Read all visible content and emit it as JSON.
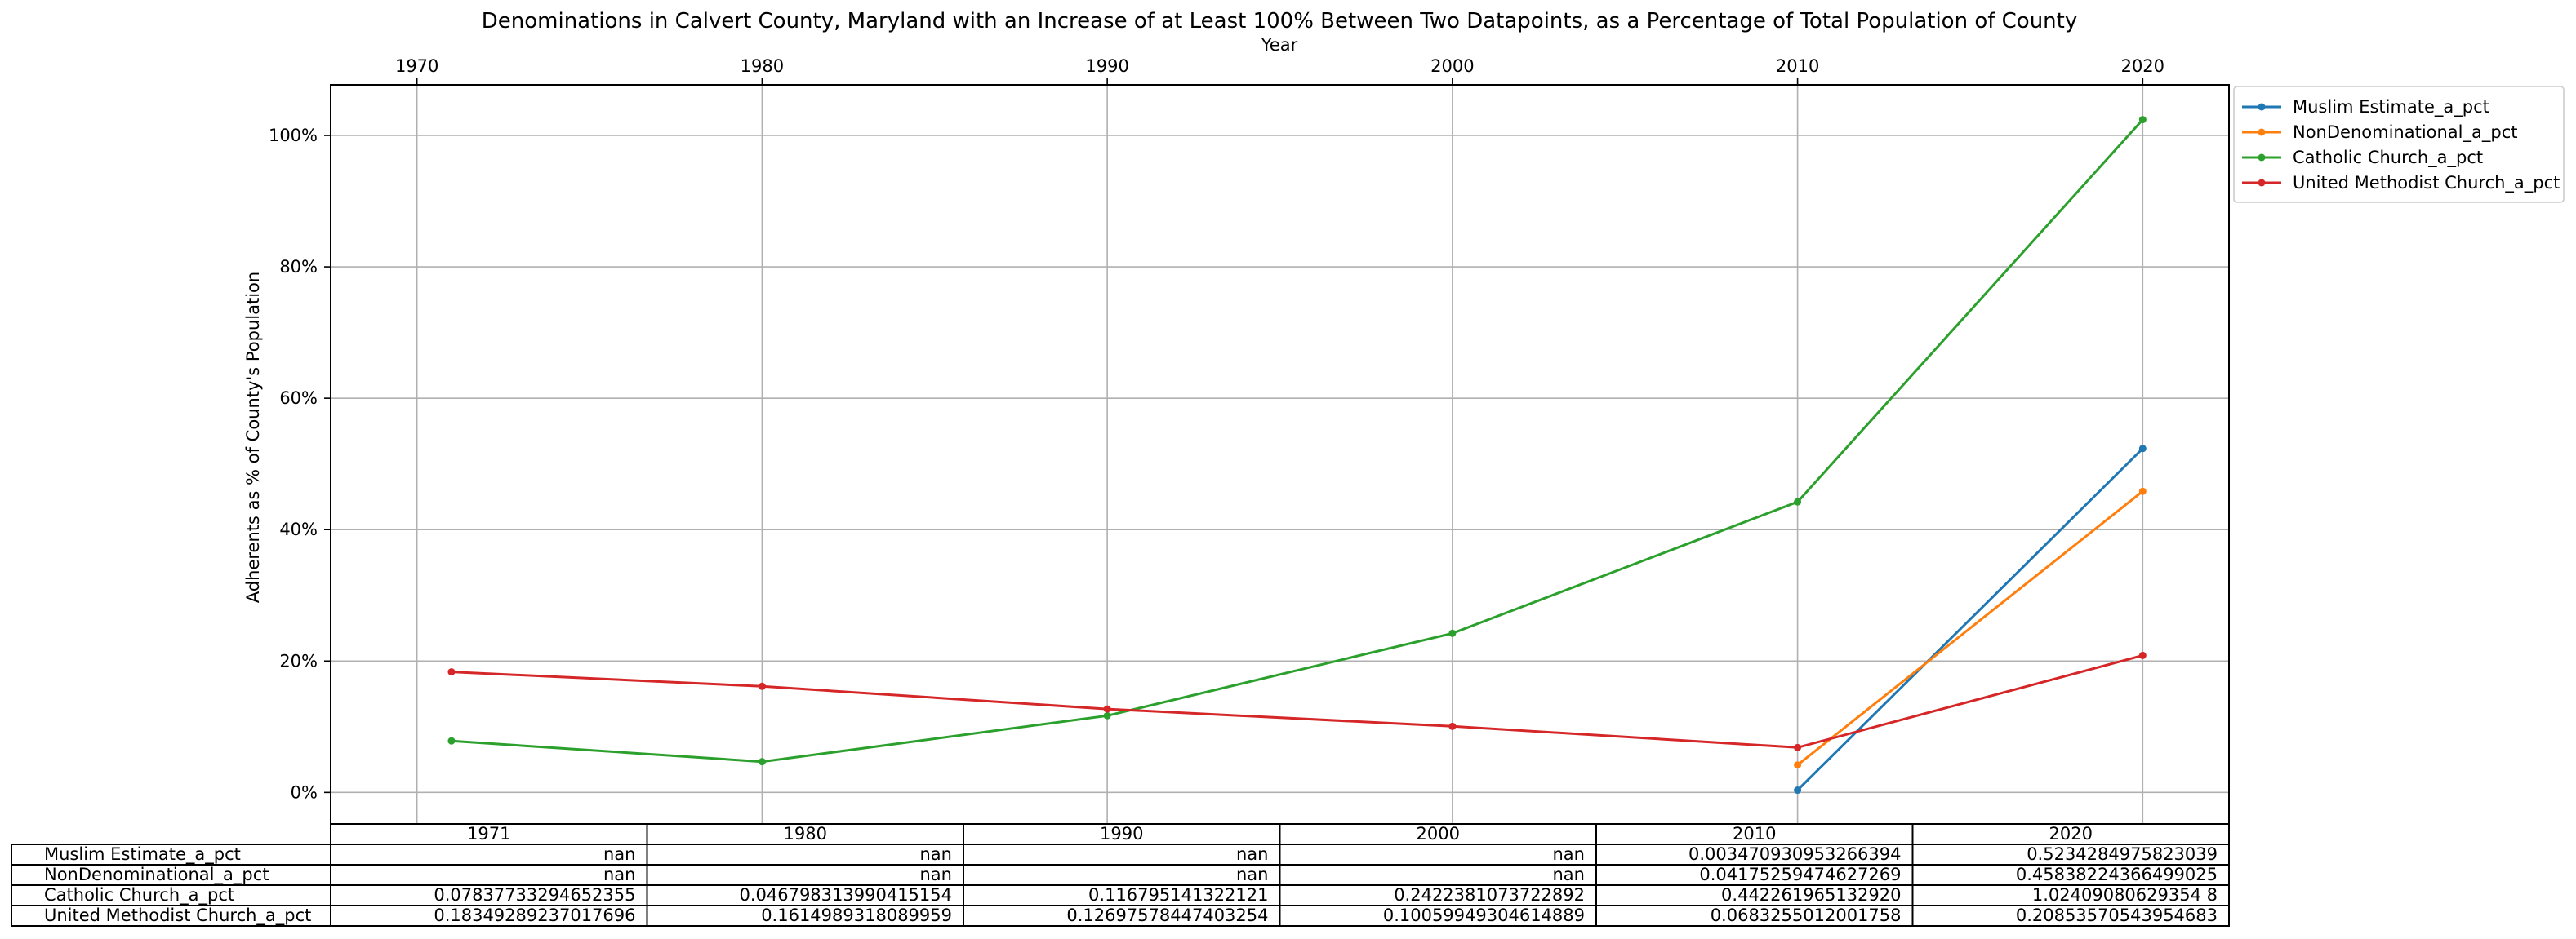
{
  "chart_data": {
    "type": "line",
    "title": "Denominations in Calvert County, Maryland with an Increase of at Least 100% Between Two Datapoints, as a Percentage of Total Population of County",
    "xlabel": "Year",
    "ylabel": "Adherents as % of County's Population",
    "x_ticks": [
      "1970",
      "1980",
      "1990",
      "2000",
      "2010",
      "2020"
    ],
    "y_ticks": [
      "0%",
      "20%",
      "40%",
      "60%",
      "80%",
      "100%"
    ],
    "xlim": [
      1967.5,
      2022.5
    ],
    "ylim": [
      -0.048,
      1.077
    ],
    "grid": true,
    "legend_position": "outside-top-right",
    "series": [
      {
        "name": "Muslim Estimate_a_pct",
        "color": "#1f77b4",
        "x": [
          2010,
          2020
        ],
        "y": [
          0.003470930953266394,
          0.5234284975823039
        ]
      },
      {
        "name": "NonDenominational_a_pct",
        "color": "#ff7f0e",
        "x": [
          2010,
          2020
        ],
        "y": [
          0.04175259474627269,
          0.45838224366499025
        ]
      },
      {
        "name": "Catholic Church_a_pct",
        "color": "#2ca02c",
        "x": [
          1971,
          1980,
          1990,
          2000,
          2010,
          2020
        ],
        "y": [
          0.07837733294652355,
          0.046798313990415154,
          0.116795141322121,
          0.2422381073722892,
          0.44226196513292,
          1.02409080629354
        ]
      },
      {
        "name": "United Methodist Church_a_pct",
        "color": "#d62728",
        "x": [
          1971,
          1980,
          1990,
          2000,
          2010,
          2020
        ],
        "y": [
          0.18349289237017696,
          0.1614989318089959,
          0.12697578447403254,
          0.10059949304614889,
          0.0683255012001758,
          0.20853570543954683
        ]
      }
    ],
    "table": {
      "columns": [
        "1971",
        "1980",
        "1990",
        "2000",
        "2010",
        "2020"
      ],
      "rows": [
        {
          "label": "Muslim Estimate_a_pct",
          "cells": [
            "nan",
            "nan",
            "nan",
            "nan",
            "0.003470930953266394",
            "0.5234284975823039"
          ]
        },
        {
          "label": "NonDenominational_a_pct",
          "cells": [
            "nan",
            "nan",
            "nan",
            "nan",
            "0.04175259474627269",
            "0.45838224366499025"
          ]
        },
        {
          "label": "Catholic Church_a_pct",
          "cells": [
            "0.07837733294652355",
            "0.046798313990415154",
            "0.116795141322121",
            "0.2422381073722892",
            "0.442261965132920",
            "1.02409080629354 8"
          ]
        },
        {
          "label": "United Methodist Church_a_pct",
          "cells": [
            "0.18349289237017696",
            "0.1614989318089959",
            "0.12697578447403254",
            "0.10059949304614889",
            "0.0683255012001758",
            "0.20853570543954683"
          ]
        }
      ]
    }
  }
}
